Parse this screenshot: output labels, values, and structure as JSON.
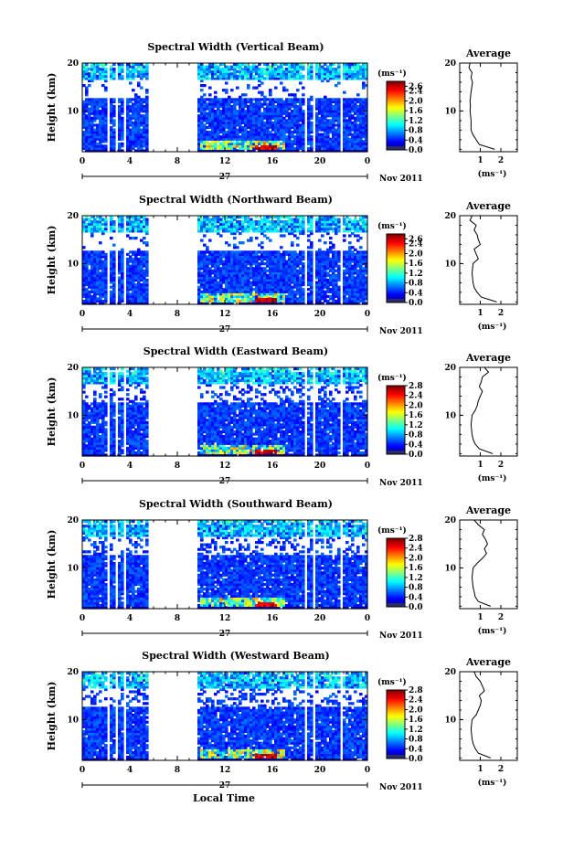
{
  "figure": {
    "x_axis_label": "Local Time",
    "date_label": "Nov 2011",
    "day_label": "27",
    "y_axis_label": "Height (km)",
    "units_label": "(ms⁻¹)",
    "average_title": "Average",
    "average_xlabel": "(ms⁻¹)"
  },
  "chart_data": [
    {
      "type": "heatmap",
      "title": "Spectral Width (Vertical Beam)",
      "x_ticks": [
        "0",
        "4",
        "8",
        "12",
        "16",
        "20",
        "0"
      ],
      "y_ticks": [
        "20",
        "10"
      ],
      "colorbar_ticks": [
        "2.6",
        "2.4",
        "2.0",
        "1.6",
        "1.2",
        "0.8",
        "0.4",
        "0.0"
      ],
      "avg_x_ticks": [
        "1",
        "2"
      ],
      "avg_y_ticks": [
        "20",
        "10"
      ],
      "xlim": [
        0,
        24
      ],
      "ylim": [
        1.5,
        20
      ],
      "colorbar_range": [
        0,
        2.8
      ],
      "data_gaps_hours": [
        [
          2.0,
          2.35
        ],
        [
          2.75,
          3.1
        ],
        [
          3.5,
          3.75
        ],
        [
          5.6,
          9.8
        ],
        [
          18.7,
          19.0
        ],
        [
          19.35,
          19.6
        ],
        [
          21.7,
          22.0
        ]
      ],
      "average_profile": {
        "height_km": [
          2,
          3,
          4,
          5,
          6,
          8,
          10,
          11,
          12,
          14,
          16,
          17,
          18,
          19,
          20
        ],
        "width": [
          1.7,
          0.95,
          0.8,
          0.65,
          0.55,
          0.55,
          0.5,
          0.52,
          0.5,
          0.55,
          0.62,
          0.55,
          0.6,
          0.45,
          0.5
        ]
      }
    },
    {
      "type": "heatmap",
      "title": "Spectral Width (Northward Beam)",
      "x_ticks": [
        "0",
        "4",
        "8",
        "12",
        "16",
        "20",
        "0"
      ],
      "y_ticks": [
        "20",
        "10"
      ],
      "colorbar_ticks": [
        "2.6",
        "2.4",
        "2.0",
        "1.6",
        "1.2",
        "0.8",
        "0.4",
        "0.0"
      ],
      "avg_x_ticks": [
        "1",
        "2"
      ],
      "avg_y_ticks": [
        "20",
        "10"
      ],
      "xlim": [
        0,
        24
      ],
      "ylim": [
        1.5,
        20
      ],
      "colorbar_range": [
        0,
        2.8
      ],
      "data_gaps_hours": [
        [
          2.0,
          2.35
        ],
        [
          2.75,
          3.1
        ],
        [
          3.5,
          3.75
        ],
        [
          5.6,
          9.8
        ],
        [
          18.7,
          19.0
        ],
        [
          19.35,
          19.6
        ],
        [
          21.7,
          22.0
        ]
      ],
      "average_profile": {
        "height_km": [
          2,
          3,
          4,
          5,
          6,
          8,
          10,
          11,
          12,
          13,
          14,
          15,
          16,
          17,
          18,
          19,
          20
        ],
        "width": [
          1.8,
          1.05,
          0.85,
          0.7,
          0.65,
          0.6,
          0.65,
          0.9,
          0.8,
          0.7,
          1.0,
          0.9,
          0.85,
          0.7,
          0.8,
          0.5,
          0.6
        ]
      }
    },
    {
      "type": "heatmap",
      "title": "Spectral Width (Eastward Beam)",
      "x_ticks": [
        "0",
        "4",
        "8",
        "12",
        "16",
        "20",
        "0"
      ],
      "y_ticks": [
        "20",
        "10"
      ],
      "colorbar_ticks": [
        "2.8",
        "2.4",
        "2.0",
        "1.6",
        "1.2",
        "0.8",
        "0.4",
        "0.0"
      ],
      "avg_x_ticks": [
        "1",
        "2"
      ],
      "avg_y_ticks": [
        "20",
        "10"
      ],
      "xlim": [
        0,
        24
      ],
      "ylim": [
        1.5,
        20
      ],
      "colorbar_range": [
        0,
        2.8
      ],
      "data_gaps_hours": [
        [
          2.0,
          2.35
        ],
        [
          2.75,
          3.1
        ],
        [
          3.5,
          3.75
        ],
        [
          5.6,
          9.8
        ],
        [
          18.7,
          19.0
        ],
        [
          19.35,
          19.6
        ],
        [
          21.7,
          22.0
        ]
      ],
      "average_profile": {
        "height_km": [
          2,
          3,
          4,
          5,
          6,
          8,
          10,
          11,
          12,
          13,
          14,
          15,
          16,
          17,
          18,
          19,
          20
        ],
        "width": [
          1.6,
          0.95,
          0.75,
          0.65,
          0.6,
          0.55,
          0.6,
          0.75,
          0.85,
          0.9,
          1.0,
          1.1,
          0.95,
          1.05,
          1.1,
          1.4,
          1.2
        ]
      }
    },
    {
      "type": "heatmap",
      "title": "Spectral Width (Southward Beam)",
      "x_ticks": [
        "0",
        "4",
        "8",
        "12",
        "16",
        "20",
        "0"
      ],
      "y_ticks": [
        "20",
        "10"
      ],
      "colorbar_ticks": [
        "2.8",
        "2.4",
        "2.0",
        "1.6",
        "1.2",
        "0.8",
        "0.4",
        "0.0"
      ],
      "avg_x_ticks": [
        "1",
        "2"
      ],
      "avg_y_ticks": [
        "20",
        "10"
      ],
      "xlim": [
        0,
        24
      ],
      "ylim": [
        1.5,
        20
      ],
      "colorbar_range": [
        0,
        2.8
      ],
      "data_gaps_hours": [
        [
          2.0,
          2.35
        ],
        [
          2.75,
          3.1
        ],
        [
          3.5,
          3.75
        ],
        [
          5.6,
          9.8
        ],
        [
          18.7,
          19.0
        ],
        [
          19.35,
          19.6
        ],
        [
          21.7,
          22.0
        ]
      ],
      "average_profile": {
        "height_km": [
          2,
          3,
          4,
          5,
          6,
          8,
          10,
          11,
          12,
          13,
          14,
          15,
          16,
          17,
          18,
          19,
          20
        ],
        "width": [
          1.5,
          0.9,
          0.75,
          0.7,
          0.65,
          0.6,
          0.65,
          0.85,
          1.1,
          1.3,
          1.2,
          1.35,
          1.25,
          1.1,
          1.2,
          0.9,
          0.7
        ]
      }
    },
    {
      "type": "heatmap",
      "title": "Spectral Width (Westward Beam)",
      "x_ticks": [
        "0",
        "4",
        "8",
        "12",
        "16",
        "20",
        "0"
      ],
      "y_ticks": [
        "20",
        "10"
      ],
      "colorbar_ticks": [
        "2.8",
        "2.4",
        "2.0",
        "1.6",
        "1.2",
        "0.8",
        "0.4",
        "0.0"
      ],
      "avg_x_ticks": [
        "1",
        "2"
      ],
      "avg_y_ticks": [
        "20",
        "10"
      ],
      "xlim": [
        0,
        24
      ],
      "ylim": [
        1.5,
        20
      ],
      "colorbar_range": [
        0,
        2.8
      ],
      "data_gaps_hours": [
        [
          2.0,
          2.35
        ],
        [
          2.75,
          3.1
        ],
        [
          3.5,
          3.75
        ],
        [
          5.6,
          9.8
        ],
        [
          18.7,
          19.0
        ],
        [
          19.35,
          19.6
        ],
        [
          21.7,
          22.0
        ]
      ],
      "average_profile": {
        "height_km": [
          2,
          3,
          4,
          5,
          6,
          8,
          10,
          11,
          12,
          13,
          14,
          15,
          16,
          17,
          18,
          19,
          20
        ],
        "width": [
          1.5,
          0.9,
          0.75,
          0.65,
          0.6,
          0.55,
          0.6,
          0.8,
          0.9,
          1.0,
          1.05,
          0.95,
          1.2,
          1.1,
          1.0,
          0.8,
          0.7
        ]
      }
    }
  ]
}
